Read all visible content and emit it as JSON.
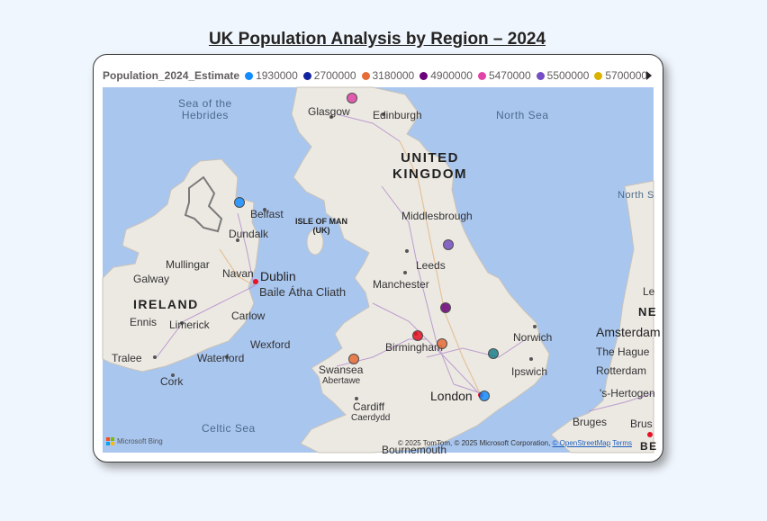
{
  "page": {
    "title": "UK Population Analysis by Region – 2024"
  },
  "legend": {
    "title": "Population_2024_Estimate",
    "items": [
      {
        "label": "1930000",
        "color": "#118dff"
      },
      {
        "label": "2700000",
        "color": "#12239e"
      },
      {
        "label": "3180000",
        "color": "#e66c37"
      },
      {
        "label": "4900000",
        "color": "#6b007b"
      },
      {
        "label": "5470000",
        "color": "#e044a7"
      },
      {
        "label": "5500000",
        "color": "#744ec2"
      },
      {
        "label": "5700000",
        "color": "#d9b300"
      }
    ],
    "next_icon": "chevron-right-icon"
  },
  "map": {
    "labels": {
      "sea_hebrides": "Sea of the\nHebrides",
      "glasgow": "Glasgow",
      "edinburgh": "Edinburgh",
      "north_sea": "North Sea",
      "north_sea_2": "North S",
      "united_kingdom": "UNITED\nKINGDOM",
      "belfast": "Belfast",
      "isle_of_man": "ISLE OF MAN\n(UK)",
      "dundalk": "Dundalk",
      "middlesbrough": "Middlesbrough",
      "mullingar": "Mullingar",
      "galway": "Galway",
      "navan": "Navan",
      "dublin": "Dublin",
      "baile_atha_cliath": "Baile Átha Cliath",
      "leeds": "Leeds",
      "manchester": "Manchester",
      "ireland": "IRELAND",
      "ennis": "Ennis",
      "limerick": "Limerick",
      "carlow": "Carlow",
      "wexford": "Wexford",
      "tralee": "Tralee",
      "waterford": "Waterford",
      "cork": "Cork",
      "birmingham": "Birmingham",
      "norwich": "Norwich",
      "amsterdam": "Amsterdam",
      "the_hague": "The Hague",
      "rotterdam": "Rotterdam",
      "hertogen": "'s-Hertogen",
      "swansea": "Swansea",
      "abertawe": "Abertawe",
      "ipswich": "Ipswich",
      "london": "London",
      "cardiff": "Cardiff",
      "caerdydd": "Caerdydd",
      "celtic_sea": "Celtic Sea",
      "bruges": "Bruges",
      "brus": "Brus",
      "le": "Le",
      "ne": "NE",
      "be": "BE",
      "bournemouth": "Bournemouth"
    },
    "bubbles": [
      {
        "name": "scotland",
        "color": "#e044a7",
        "value": "5470000"
      },
      {
        "name": "northern-ireland",
        "color": "#118dff",
        "value": "1930000"
      },
      {
        "name": "north-east-yorkshire",
        "color": "#744ec2",
        "value": "5500000"
      },
      {
        "name": "east-midlands",
        "color": "#6b007b",
        "value": "4900000"
      },
      {
        "name": "west-midlands",
        "color": "#e81123",
        "value": ""
      },
      {
        "name": "midlands-orange",
        "color": "#e66c37",
        "value": ""
      },
      {
        "name": "wales",
        "color": "#e66c37",
        "value": "3180000"
      },
      {
        "name": "east-of-england",
        "color": "#1a7f8a",
        "value": ""
      },
      {
        "name": "london",
        "color": "#118dff",
        "value": ""
      }
    ],
    "attribution": {
      "bing": "Microsoft Bing",
      "copyright_prefix": "© 2025 TomTom, © 2025 Microsoft Corporation,",
      "osm_link": "© OpenStreetMap",
      "terms_link": "Terms"
    }
  }
}
